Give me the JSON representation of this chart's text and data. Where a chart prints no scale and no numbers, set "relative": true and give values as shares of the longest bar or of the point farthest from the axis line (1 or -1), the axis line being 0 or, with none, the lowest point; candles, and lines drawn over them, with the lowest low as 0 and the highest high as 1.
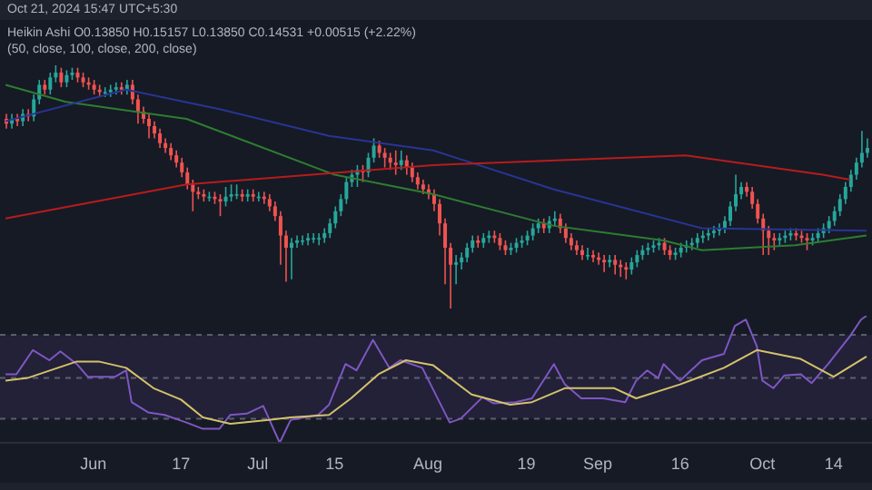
{
  "chart_data": [
    {
      "type": "candlestick",
      "relative": true,
      "tick_labels": false,
      "xlim": [
        "2024-05-15",
        "2024-10-21"
      ],
      "annotations": [
        "Oct 21, 2024 15:47 UTC+5:30",
        "Heikin Ashi  O0.13850  H0.15157  L0.13850  C0.14531  +0.00515 (+2.22%)",
        "(50, close, 100, close, 200, close)"
      ],
      "x": [
        "2024-05-16",
        "2024-05-17",
        "2024-05-18",
        "2024-05-19",
        "2024-05-20",
        "2024-05-21",
        "2024-05-22",
        "2024-05-23",
        "2024-05-24",
        "2024-05-25",
        "2024-05-26",
        "2024-05-27",
        "2024-05-28",
        "2024-05-29",
        "2024-05-30",
        "2024-05-31",
        "2024-06-01",
        "2024-06-02",
        "2024-06-03",
        "2024-06-04",
        "2024-06-05",
        "2024-06-06",
        "2024-06-07",
        "2024-06-08",
        "2024-06-09",
        "2024-06-10",
        "2024-06-11",
        "2024-06-12",
        "2024-06-13",
        "2024-06-14",
        "2024-06-15",
        "2024-06-16",
        "2024-06-17",
        "2024-06-18",
        "2024-06-19",
        "2024-06-20",
        "2024-06-21",
        "2024-06-22",
        "2024-06-23",
        "2024-06-24",
        "2024-06-25",
        "2024-06-26",
        "2024-06-27",
        "2024-06-28",
        "2024-06-29",
        "2024-06-30",
        "2024-07-01",
        "2024-07-02",
        "2024-07-03",
        "2024-07-04",
        "2024-07-05",
        "2024-07-06",
        "2024-07-07",
        "2024-07-08",
        "2024-07-09",
        "2024-07-10",
        "2024-07-11",
        "2024-07-12",
        "2024-07-13",
        "2024-07-14",
        "2024-07-15",
        "2024-07-16",
        "2024-07-17",
        "2024-07-18",
        "2024-07-19",
        "2024-07-20",
        "2024-07-21",
        "2024-07-22",
        "2024-07-23",
        "2024-07-24",
        "2024-07-25",
        "2024-07-26",
        "2024-07-27",
        "2024-07-28",
        "2024-07-29",
        "2024-07-30",
        "2024-07-31",
        "2024-08-01",
        "2024-08-02",
        "2024-08-03",
        "2024-08-04",
        "2024-08-05",
        "2024-08-06",
        "2024-08-07",
        "2024-08-08",
        "2024-08-09",
        "2024-08-10",
        "2024-08-11",
        "2024-08-12",
        "2024-08-13",
        "2024-08-14",
        "2024-08-15",
        "2024-08-16",
        "2024-08-17",
        "2024-08-18",
        "2024-08-19",
        "2024-08-20",
        "2024-08-21",
        "2024-08-22",
        "2024-08-23",
        "2024-08-24",
        "2024-08-25",
        "2024-08-26",
        "2024-08-27",
        "2024-08-28",
        "2024-08-29",
        "2024-08-30",
        "2024-08-31",
        "2024-09-01",
        "2024-09-02",
        "2024-09-03",
        "2024-09-04",
        "2024-09-05",
        "2024-09-06",
        "2024-09-07",
        "2024-09-08",
        "2024-09-09",
        "2024-09-10",
        "2024-09-11",
        "2024-09-12",
        "2024-09-13",
        "2024-09-14",
        "2024-09-15",
        "2024-09-16",
        "2024-09-17",
        "2024-09-18",
        "2024-09-19",
        "2024-09-20",
        "2024-09-21",
        "2024-09-22",
        "2024-09-23",
        "2024-09-24",
        "2024-09-25",
        "2024-09-26",
        "2024-09-27",
        "2024-09-28",
        "2024-09-29",
        "2024-09-30",
        "2024-10-01",
        "2024-10-02",
        "2024-10-03",
        "2024-10-04",
        "2024-10-05",
        "2024-10-06",
        "2024-10-07",
        "2024-10-08",
        "2024-10-09",
        "2024-10-10",
        "2024-10-11",
        "2024-10-12",
        "2024-10-13",
        "2024-10-14",
        "2024-10-15",
        "2024-10-16",
        "2024-10-17",
        "2024-10-18",
        "2024-10-19",
        "2024-10-20"
      ],
      "ohlc": [
        [
          0.78,
          0.8,
          0.74,
          0.76
        ],
        [
          0.76,
          0.8,
          0.74,
          0.78
        ],
        [
          0.78,
          0.8,
          0.75,
          0.77
        ],
        [
          0.77,
          0.82,
          0.75,
          0.8
        ],
        [
          0.8,
          0.82,
          0.77,
          0.79
        ],
        [
          0.79,
          0.88,
          0.77,
          0.86
        ],
        [
          0.86,
          0.94,
          0.84,
          0.92
        ],
        [
          0.92,
          0.94,
          0.88,
          0.9
        ],
        [
          0.9,
          0.97,
          0.88,
          0.95
        ],
        [
          0.95,
          1.0,
          0.93,
          0.97
        ],
        [
          0.97,
          0.99,
          0.91,
          0.93
        ],
        [
          0.93,
          0.98,
          0.91,
          0.96
        ],
        [
          0.96,
          0.99,
          0.94,
          0.97
        ],
        [
          0.97,
          0.99,
          0.93,
          0.95
        ],
        [
          0.95,
          0.97,
          0.91,
          0.93
        ],
        [
          0.93,
          0.95,
          0.9,
          0.92
        ],
        [
          0.92,
          0.94,
          0.88,
          0.9
        ],
        [
          0.9,
          0.92,
          0.87,
          0.89
        ],
        [
          0.89,
          0.91,
          0.87,
          0.89
        ],
        [
          0.89,
          0.92,
          0.87,
          0.9
        ],
        [
          0.9,
          0.93,
          0.88,
          0.91
        ],
        [
          0.91,
          0.93,
          0.88,
          0.9
        ],
        [
          0.9,
          0.94,
          0.88,
          0.92
        ],
        [
          0.92,
          0.94,
          0.84,
          0.86
        ],
        [
          0.86,
          0.88,
          0.76,
          0.81
        ],
        [
          0.81,
          0.83,
          0.76,
          0.78
        ],
        [
          0.78,
          0.8,
          0.7,
          0.75
        ],
        [
          0.75,
          0.77,
          0.7,
          0.72
        ],
        [
          0.72,
          0.74,
          0.66,
          0.68
        ],
        [
          0.68,
          0.7,
          0.64,
          0.66
        ],
        [
          0.66,
          0.68,
          0.61,
          0.63
        ],
        [
          0.63,
          0.65,
          0.58,
          0.6
        ],
        [
          0.6,
          0.62,
          0.54,
          0.56
        ],
        [
          0.56,
          0.58,
          0.49,
          0.51
        ],
        [
          0.51,
          0.53,
          0.4,
          0.48
        ],
        [
          0.48,
          0.5,
          0.45,
          0.47
        ],
        [
          0.47,
          0.49,
          0.44,
          0.46
        ],
        [
          0.46,
          0.48,
          0.44,
          0.46
        ],
        [
          0.46,
          0.48,
          0.43,
          0.45
        ],
        [
          0.45,
          0.47,
          0.38,
          0.44
        ],
        [
          0.44,
          0.5,
          0.42,
          0.46
        ],
        [
          0.46,
          0.51,
          0.44,
          0.47
        ],
        [
          0.47,
          0.51,
          0.45,
          0.47
        ],
        [
          0.47,
          0.49,
          0.44,
          0.46
        ],
        [
          0.46,
          0.49,
          0.44,
          0.47
        ],
        [
          0.47,
          0.49,
          0.44,
          0.46
        ],
        [
          0.46,
          0.48,
          0.44,
          0.46
        ],
        [
          0.46,
          0.48,
          0.43,
          0.45
        ],
        [
          0.45,
          0.47,
          0.4,
          0.42
        ],
        [
          0.42,
          0.44,
          0.36,
          0.38
        ],
        [
          0.38,
          0.4,
          0.18,
          0.3
        ],
        [
          0.3,
          0.32,
          0.11,
          0.25
        ],
        [
          0.25,
          0.29,
          0.12,
          0.27
        ],
        [
          0.27,
          0.3,
          0.25,
          0.28
        ],
        [
          0.28,
          0.3,
          0.26,
          0.28
        ],
        [
          0.28,
          0.31,
          0.26,
          0.29
        ],
        [
          0.29,
          0.31,
          0.27,
          0.29
        ],
        [
          0.29,
          0.31,
          0.26,
          0.29
        ],
        [
          0.29,
          0.33,
          0.27,
          0.31
        ],
        [
          0.31,
          0.37,
          0.29,
          0.35
        ],
        [
          0.35,
          0.42,
          0.33,
          0.4
        ],
        [
          0.4,
          0.47,
          0.38,
          0.45
        ],
        [
          0.45,
          0.54,
          0.43,
          0.52
        ],
        [
          0.52,
          0.57,
          0.5,
          0.55
        ],
        [
          0.55,
          0.59,
          0.5,
          0.57
        ],
        [
          0.57,
          0.59,
          0.52,
          0.56
        ],
        [
          0.56,
          0.64,
          0.54,
          0.62
        ],
        [
          0.62,
          0.7,
          0.6,
          0.67
        ],
        [
          0.67,
          0.69,
          0.62,
          0.64
        ],
        [
          0.64,
          0.66,
          0.58,
          0.62
        ],
        [
          0.62,
          0.64,
          0.57,
          0.6
        ],
        [
          0.6,
          0.65,
          0.55,
          0.59
        ],
        [
          0.59,
          0.65,
          0.57,
          0.61
        ],
        [
          0.61,
          0.63,
          0.55,
          0.58
        ],
        [
          0.58,
          0.6,
          0.52,
          0.54
        ],
        [
          0.54,
          0.56,
          0.49,
          0.51
        ],
        [
          0.51,
          0.53,
          0.47,
          0.49
        ],
        [
          0.49,
          0.51,
          0.45,
          0.47
        ],
        [
          0.47,
          0.49,
          0.4,
          0.43
        ],
        [
          0.43,
          0.45,
          0.3,
          0.35
        ],
        [
          0.35,
          0.37,
          0.1,
          0.25
        ],
        [
          0.25,
          0.27,
          0.0,
          0.18
        ],
        [
          0.18,
          0.22,
          0.1,
          0.19
        ],
        [
          0.19,
          0.23,
          0.16,
          0.21
        ],
        [
          0.21,
          0.27,
          0.19,
          0.25
        ],
        [
          0.25,
          0.3,
          0.23,
          0.28
        ],
        [
          0.28,
          0.3,
          0.25,
          0.27
        ],
        [
          0.27,
          0.31,
          0.25,
          0.29
        ],
        [
          0.29,
          0.32,
          0.27,
          0.3
        ],
        [
          0.3,
          0.32,
          0.27,
          0.29
        ],
        [
          0.29,
          0.31,
          0.24,
          0.26
        ],
        [
          0.26,
          0.28,
          0.22,
          0.24
        ],
        [
          0.24,
          0.27,
          0.22,
          0.25
        ],
        [
          0.25,
          0.29,
          0.23,
          0.27
        ],
        [
          0.27,
          0.3,
          0.25,
          0.28
        ],
        [
          0.28,
          0.32,
          0.26,
          0.3
        ],
        [
          0.3,
          0.35,
          0.28,
          0.33
        ],
        [
          0.33,
          0.37,
          0.31,
          0.35
        ],
        [
          0.35,
          0.37,
          0.31,
          0.33
        ],
        [
          0.33,
          0.38,
          0.31,
          0.36
        ],
        [
          0.36,
          0.4,
          0.34,
          0.37
        ],
        [
          0.37,
          0.39,
          0.31,
          0.33
        ],
        [
          0.33,
          0.35,
          0.27,
          0.29
        ],
        [
          0.29,
          0.31,
          0.24,
          0.26
        ],
        [
          0.26,
          0.28,
          0.22,
          0.24
        ],
        [
          0.24,
          0.26,
          0.2,
          0.22
        ],
        [
          0.22,
          0.25,
          0.2,
          0.22
        ],
        [
          0.22,
          0.24,
          0.19,
          0.21
        ],
        [
          0.21,
          0.23,
          0.18,
          0.2
        ],
        [
          0.2,
          0.22,
          0.15,
          0.19
        ],
        [
          0.19,
          0.22,
          0.17,
          0.2
        ],
        [
          0.2,
          0.22,
          0.14,
          0.18
        ],
        [
          0.18,
          0.2,
          0.13,
          0.17
        ],
        [
          0.17,
          0.19,
          0.12,
          0.16
        ],
        [
          0.16,
          0.21,
          0.14,
          0.19
        ],
        [
          0.19,
          0.24,
          0.17,
          0.22
        ],
        [
          0.22,
          0.26,
          0.2,
          0.24
        ],
        [
          0.24,
          0.27,
          0.22,
          0.25
        ],
        [
          0.25,
          0.28,
          0.23,
          0.26
        ],
        [
          0.26,
          0.29,
          0.24,
          0.27
        ],
        [
          0.27,
          0.29,
          0.22,
          0.24
        ],
        [
          0.24,
          0.26,
          0.2,
          0.22
        ],
        [
          0.22,
          0.25,
          0.2,
          0.23
        ],
        [
          0.23,
          0.27,
          0.21,
          0.25
        ],
        [
          0.25,
          0.28,
          0.23,
          0.26
        ],
        [
          0.26,
          0.29,
          0.24,
          0.27
        ],
        [
          0.27,
          0.31,
          0.25,
          0.29
        ],
        [
          0.29,
          0.32,
          0.27,
          0.3
        ],
        [
          0.3,
          0.33,
          0.28,
          0.31
        ],
        [
          0.31,
          0.34,
          0.29,
          0.32
        ],
        [
          0.32,
          0.35,
          0.3,
          0.33
        ],
        [
          0.33,
          0.38,
          0.31,
          0.36
        ],
        [
          0.36,
          0.44,
          0.34,
          0.42
        ],
        [
          0.42,
          0.55,
          0.4,
          0.47
        ],
        [
          0.47,
          0.52,
          0.45,
          0.5
        ],
        [
          0.5,
          0.52,
          0.46,
          0.48
        ],
        [
          0.48,
          0.5,
          0.41,
          0.43
        ],
        [
          0.43,
          0.45,
          0.35,
          0.37
        ],
        [
          0.37,
          0.39,
          0.22,
          0.32
        ],
        [
          0.32,
          0.34,
          0.22,
          0.29
        ],
        [
          0.29,
          0.31,
          0.24,
          0.28
        ],
        [
          0.28,
          0.31,
          0.26,
          0.29
        ],
        [
          0.29,
          0.32,
          0.27,
          0.3
        ],
        [
          0.3,
          0.33,
          0.28,
          0.31
        ],
        [
          0.31,
          0.33,
          0.28,
          0.3
        ],
        [
          0.3,
          0.32,
          0.27,
          0.29
        ],
        [
          0.29,
          0.31,
          0.24,
          0.28
        ],
        [
          0.28,
          0.31,
          0.26,
          0.29
        ],
        [
          0.29,
          0.33,
          0.27,
          0.31
        ],
        [
          0.31,
          0.35,
          0.29,
          0.33
        ],
        [
          0.33,
          0.38,
          0.31,
          0.36
        ],
        [
          0.36,
          0.42,
          0.34,
          0.4
        ],
        [
          0.4,
          0.47,
          0.38,
          0.45
        ],
        [
          0.45,
          0.52,
          0.43,
          0.5
        ],
        [
          0.5,
          0.57,
          0.48,
          0.55
        ],
        [
          0.55,
          0.62,
          0.53,
          0.6
        ],
        [
          0.6,
          0.73,
          0.58,
          0.64
        ],
        [
          0.64,
          0.7,
          0.62,
          0.66
        ]
      ],
      "series": [
        {
          "type": "line",
          "color": "#2e7d32",
          "x": [
            "2024-05-16",
            "2024-05-27",
            "2024-06-18",
            "2024-07-15",
            "2024-08-02",
            "2024-08-24",
            "2024-09-13",
            "2024-09-20",
            "2024-10-07",
            "2024-10-20"
          ],
          "values": [
            0.92,
            0.85,
            0.78,
            0.55,
            0.47,
            0.34,
            0.28,
            0.24,
            0.26,
            0.3
          ]
        },
        {
          "type": "line",
          "color": "#283593",
          "x": [
            "2024-05-16",
            "2024-06-07",
            "2024-06-24",
            "2024-07-14",
            "2024-08-02",
            "2024-08-24",
            "2024-09-20",
            "2024-10-20"
          ],
          "values": [
            0.77,
            0.9,
            0.82,
            0.71,
            0.65,
            0.49,
            0.33,
            0.32
          ]
        },
        {
          "type": "line",
          "color": "#b71c1c",
          "x": [
            "2024-05-16",
            "2024-06-18",
            "2024-08-02",
            "2024-09-17",
            "2024-10-12",
            "2024-10-17"
          ],
          "values": [
            0.37,
            0.51,
            0.59,
            0.63,
            0.55,
            0.53
          ]
        }
      ]
    },
    {
      "type": "line",
      "relative": true,
      "tick_labels": "x",
      "xlim": [
        "2024-05-15",
        "2024-10-21"
      ],
      "xticks": [
        {
          "value": "2024-06-01",
          "label": "Jun"
        },
        {
          "value": "2024-06-17",
          "label": "17"
        },
        {
          "value": "2024-07-01",
          "label": "Jul"
        },
        {
          "value": "2024-07-15",
          "label": "15"
        },
        {
          "value": "2024-08-01",
          "label": "Aug"
        },
        {
          "value": "2024-08-19",
          "label": "19"
        },
        {
          "value": "2024-09-01",
          "label": "Sep"
        },
        {
          "value": "2024-09-16",
          "label": "16"
        },
        {
          "value": "2024-10-01",
          "label": "Oct"
        },
        {
          "value": "2024-10-14",
          "label": "14"
        }
      ],
      "bands": [
        {
          "axis": "y",
          "from": 0.19,
          "to": 0.85,
          "color": "#7e57c2"
        }
      ],
      "ref_lines": [
        {
          "axis": "y",
          "value": 0.85,
          "color": "#787b86",
          "line_style": "dashed"
        },
        {
          "axis": "y",
          "value": 0.51,
          "color": "#787b86",
          "line_style": "dashed"
        },
        {
          "axis": "y",
          "value": 0.19,
          "color": "#787b86",
          "line_style": "dashed"
        }
      ],
      "series": [
        {
          "color": "#7e57c2",
          "x": [
            "2024-05-16",
            "2024-05-18",
            "2024-05-21",
            "2024-05-24",
            "2024-05-26",
            "2024-05-29",
            "2024-05-31",
            "2024-06-05",
            "2024-06-07",
            "2024-06-08",
            "2024-06-11",
            "2024-06-14",
            "2024-06-18",
            "2024-06-21",
            "2024-06-24",
            "2024-06-26",
            "2024-06-29",
            "2024-07-02",
            "2024-07-05",
            "2024-07-07",
            "2024-07-12",
            "2024-07-14",
            "2024-07-17",
            "2024-07-19",
            "2024-07-22",
            "2024-07-25",
            "2024-07-27",
            "2024-07-31",
            "2024-08-05",
            "2024-08-07",
            "2024-08-11",
            "2024-08-13",
            "2024-08-17",
            "2024-08-20",
            "2024-08-24",
            "2024-08-26",
            "2024-08-29",
            "2024-09-02",
            "2024-09-06",
            "2024-09-08",
            "2024-09-10",
            "2024-09-12",
            "2024-09-13",
            "2024-09-16",
            "2024-09-20",
            "2024-09-24",
            "2024-09-26",
            "2024-09-28",
            "2024-09-30",
            "2024-10-01",
            "2024-10-03",
            "2024-10-05",
            "2024-10-08",
            "2024-10-10",
            "2024-10-13",
            "2024-10-17",
            "2024-10-19",
            "2024-10-20"
          ],
          "values": [
            0.54,
            0.54,
            0.73,
            0.65,
            0.72,
            0.62,
            0.52,
            0.52,
            0.57,
            0.32,
            0.24,
            0.22,
            0.16,
            0.11,
            0.11,
            0.22,
            0.23,
            0.29,
            0,
            0.18,
            0.22,
            0.3,
            0.62,
            0.57,
            0.81,
            0.59,
            0.65,
            0.59,
            0.16,
            0.19,
            0.36,
            0.31,
            0.32,
            0.35,
            0.62,
            0.46,
            0.35,
            0.35,
            0.32,
            0.49,
            0.57,
            0.51,
            0.62,
            0.49,
            0.65,
            0.7,
            0.92,
            0.97,
            0.76,
            0.49,
            0.43,
            0.53,
            0.54,
            0.47,
            0.62,
            0.84,
            0.97,
            1
          ]
        },
        {
          "color": "#d4c26a",
          "x": [
            "2024-05-16",
            "2024-05-20",
            "2024-05-29",
            "2024-06-02",
            "2024-06-07",
            "2024-06-12",
            "2024-06-17",
            "2024-06-21",
            "2024-06-26",
            "2024-07-03",
            "2024-07-07",
            "2024-07-14",
            "2024-07-18",
            "2024-07-23",
            "2024-07-28",
            "2024-08-02",
            "2024-08-09",
            "2024-08-16",
            "2024-08-20",
            "2024-08-26",
            "2024-09-04",
            "2024-09-08",
            "2024-09-16",
            "2024-09-24",
            "2024-09-30",
            "2024-10-08",
            "2024-10-14",
            "2024-10-20"
          ],
          "values": [
            0.49,
            0.51,
            0.64,
            0.64,
            0.59,
            0.43,
            0.34,
            0.2,
            0.15,
            0.18,
            0.2,
            0.22,
            0.35,
            0.54,
            0.65,
            0.61,
            0.38,
            0.3,
            0.32,
            0.43,
            0.43,
            0.35,
            0.46,
            0.59,
            0.73,
            0.66,
            0.52,
            0.68
          ]
        }
      ]
    }
  ]
}
